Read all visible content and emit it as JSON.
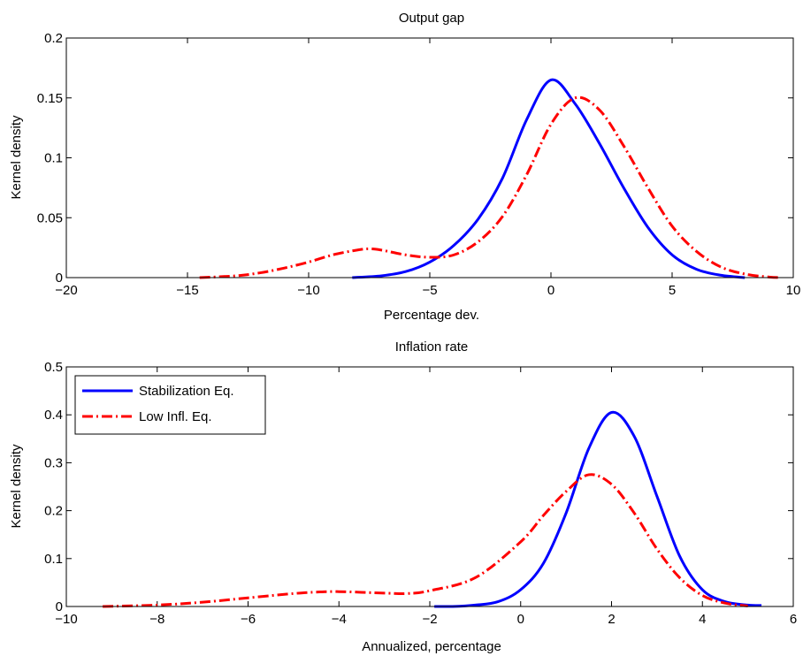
{
  "colors": {
    "stabilization": "#0000ff",
    "low_infl": "#ff0000",
    "axes": "#000000",
    "background": "#ffffff"
  },
  "chart_data": [
    {
      "type": "line",
      "title": "Output gap",
      "xlabel": "Percentage dev.",
      "ylabel": "Kernel density",
      "xlim": [
        -20,
        10
      ],
      "ylim": [
        0,
        0.2
      ],
      "xticks": [
        -20,
        -15,
        -10,
        -5,
        0,
        5,
        10
      ],
      "xtick_labels": [
        "−20",
        "−15",
        "−10",
        "−5",
        "0",
        "5",
        "10"
      ],
      "yticks": [
        0,
        0.05,
        0.1,
        0.15,
        0.2
      ],
      "ytick_labels": [
        "0",
        "0.05",
        "0.1",
        "0.15",
        "0.2"
      ],
      "grid": false,
      "legend": null,
      "series": [
        {
          "name": "Stabilization Eq.",
          "style": "solid",
          "color": "#0000ff",
          "x": [
            -8.2,
            -7,
            -6,
            -5,
            -4,
            -3,
            -2,
            -1,
            0,
            1,
            2,
            3,
            4,
            5,
            6,
            7,
            8
          ],
          "y": [
            0.0,
            0.0015,
            0.005,
            0.013,
            0.027,
            0.049,
            0.083,
            0.132,
            0.165,
            0.145,
            0.112,
            0.075,
            0.042,
            0.019,
            0.007,
            0.002,
            0.0
          ]
        },
        {
          "name": "Low Infl. Eq.",
          "style": "dashdot",
          "color": "#ff0000",
          "x": [
            -14.5,
            -13,
            -12,
            -11,
            -10,
            -9,
            -8,
            -7.5,
            -7,
            -6,
            -5,
            -4,
            -3,
            -2,
            -1,
            0,
            1,
            2,
            3,
            4,
            5,
            6,
            7,
            8,
            9,
            9.5
          ],
          "y": [
            0.0,
            0.0015,
            0.004,
            0.008,
            0.013,
            0.019,
            0.023,
            0.024,
            0.023,
            0.019,
            0.017,
            0.019,
            0.03,
            0.051,
            0.086,
            0.128,
            0.15,
            0.14,
            0.11,
            0.075,
            0.043,
            0.022,
            0.009,
            0.003,
            0.0005,
            0.0
          ]
        }
      ]
    },
    {
      "type": "line",
      "title": "Inflation rate",
      "xlabel": "Annualized, percentage",
      "ylabel": "Kernel density",
      "xlim": [
        -10,
        6
      ],
      "ylim": [
        0,
        0.5
      ],
      "xticks": [
        -10,
        -8,
        -6,
        -4,
        -2,
        0,
        2,
        4,
        6
      ],
      "xtick_labels": [
        "−10",
        "−8",
        "−6",
        "−4",
        "−2",
        "0",
        "2",
        "4",
        "6"
      ],
      "yticks": [
        0,
        0.1,
        0.2,
        0.3,
        0.4,
        0.5
      ],
      "ytick_labels": [
        "0",
        "0.1",
        "0.2",
        "0.3",
        "0.4",
        "0.5"
      ],
      "grid": false,
      "legend": "top-left",
      "series": [
        {
          "name": "Stabilization Eq.",
          "style": "solid",
          "color": "#0000ff",
          "x": [
            -1.9,
            -1.5,
            -1,
            -0.5,
            0,
            0.5,
            1,
            1.5,
            2,
            2.5,
            3,
            3.5,
            4,
            4.5,
            5,
            5.3
          ],
          "y": [
            0.0,
            0.0,
            0.003,
            0.01,
            0.035,
            0.09,
            0.195,
            0.33,
            0.405,
            0.355,
            0.23,
            0.105,
            0.035,
            0.01,
            0.003,
            0.002
          ]
        },
        {
          "name": "Low Infl. Eq.",
          "style": "dashdot",
          "color": "#ff0000",
          "x": [
            -9.2,
            -8,
            -7,
            -6,
            -5,
            -4.5,
            -4,
            -3,
            -2.5,
            -2,
            -1,
            0,
            0.5,
            1,
            1.5,
            2,
            2.5,
            3,
            3.5,
            4,
            4.5,
            5
          ],
          "y": [
            0.0,
            0.003,
            0.009,
            0.018,
            0.027,
            0.03,
            0.031,
            0.028,
            0.027,
            0.033,
            0.06,
            0.135,
            0.19,
            0.24,
            0.275,
            0.255,
            0.195,
            0.12,
            0.06,
            0.023,
            0.007,
            0.001
          ]
        }
      ]
    }
  ]
}
